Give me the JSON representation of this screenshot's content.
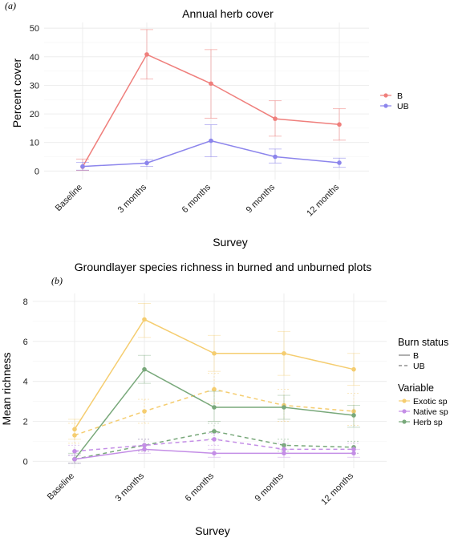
{
  "colors": {
    "burned": "#EF7F7C",
    "unburned": "#8C85EC",
    "exotic": "#F5CD70",
    "native": "#C48EE6",
    "herb": "#78A87A",
    "grid": "#EBEBEB"
  },
  "chart_data": [
    {
      "type": "line",
      "panel_tag": "(a)",
      "title": "Annual herb cover",
      "xlabel": "Survey",
      "ylabel": "Percent cover",
      "categories": [
        "Baseline",
        "3 months",
        "6 months",
        "9 months",
        "12 months"
      ],
      "y_ticks": [
        0,
        10,
        20,
        30,
        40,
        50
      ],
      "ylim": [
        -3,
        52
      ],
      "grid": true,
      "legend_position": "right",
      "series": [
        {
          "name": "B",
          "color_key": "burned",
          "dash": false,
          "values": [
            1.5,
            40.8,
            30.6,
            18.3,
            16.3
          ],
          "err_low": [
            0.2,
            32.2,
            18.5,
            12.2,
            10.8
          ],
          "err_high": [
            4.2,
            49.5,
            42.5,
            24.6,
            21.8
          ]
        },
        {
          "name": "UB",
          "color_key": "unburned",
          "dash": false,
          "values": [
            1.6,
            2.8,
            10.6,
            5.0,
            2.9
          ],
          "err_low": [
            0.3,
            1.6,
            5.0,
            2.8,
            1.3
          ],
          "err_high": [
            3.0,
            4.0,
            16.2,
            7.7,
            4.5
          ]
        }
      ]
    },
    {
      "type": "line",
      "panel_tag": "(b)",
      "title": "Groundlayer species richness in burned and unburned plots",
      "xlabel": "Survey",
      "ylabel": "Mean richness",
      "categories": [
        "Baseline",
        "3 months",
        "6 months",
        "9 months",
        "12 months"
      ],
      "y_ticks": [
        0,
        2,
        4,
        6,
        8
      ],
      "ylim": [
        -0.35,
        8.4
      ],
      "grid": true,
      "legend_position": "right",
      "legend_groups": [
        {
          "title": "Burn status",
          "items": [
            {
              "label": "B",
              "dash": false,
              "color_key": "legend_grey"
            },
            {
              "label": "UB",
              "dash": true,
              "color_key": "legend_grey"
            }
          ]
        },
        {
          "title": "Variable",
          "items": [
            {
              "label": "Exotic sp",
              "color_key": "exotic"
            },
            {
              "label": "Native sp",
              "color_key": "native"
            },
            {
              "label": "Herb sp",
              "color_key": "herb"
            }
          ]
        }
      ],
      "series": [
        {
          "variable": "Exotic sp",
          "burn_status": "B",
          "color_key": "exotic",
          "dash": false,
          "values": [
            1.6,
            7.1,
            5.4,
            5.4,
            4.6
          ],
          "err_low": [
            1.1,
            6.2,
            4.5,
            4.3,
            3.8
          ],
          "err_high": [
            2.1,
            7.9,
            6.3,
            6.5,
            5.4
          ]
        },
        {
          "variable": "Exotic sp",
          "burn_status": "UB",
          "color_key": "exotic",
          "dash": true,
          "values": [
            1.3,
            2.5,
            3.6,
            2.8,
            2.5
          ],
          "err_low": [
            0.9,
            1.9,
            2.9,
            2.0,
            1.8
          ],
          "err_high": [
            1.9,
            3.1,
            4.4,
            3.6,
            3.4
          ]
        },
        {
          "variable": "Herb sp",
          "burn_status": "B",
          "color_key": "herb",
          "dash": false,
          "values": [
            0.1,
            4.6,
            2.7,
            2.7,
            2.3
          ],
          "err_low": [
            -0.1,
            3.9,
            2.0,
            2.1,
            1.7
          ],
          "err_high": [
            0.4,
            5.3,
            3.5,
            3.3,
            2.8
          ]
        },
        {
          "variable": "Herb sp",
          "burn_status": "UB",
          "color_key": "herb",
          "dash": true,
          "values": [
            0.1,
            0.8,
            1.5,
            0.8,
            0.7
          ],
          "err_low": [
            -0.1,
            0.5,
            1.1,
            0.5,
            0.4
          ],
          "err_high": [
            0.3,
            1.1,
            1.9,
            1.1,
            1.0
          ]
        },
        {
          "variable": "Native sp",
          "burn_status": "B",
          "color_key": "native",
          "dash": false,
          "values": [
            0.1,
            0.6,
            0.4,
            0.4,
            0.4
          ],
          "err_low": [
            -0.1,
            0.4,
            0.2,
            0.2,
            0.2
          ],
          "err_high": [
            0.3,
            0.8,
            0.6,
            0.6,
            0.6
          ]
        },
        {
          "variable": "Native sp",
          "burn_status": "UB",
          "color_key": "native",
          "dash": true,
          "values": [
            0.5,
            0.8,
            1.1,
            0.6,
            0.6
          ],
          "err_low": [
            0.3,
            0.5,
            0.8,
            0.4,
            0.4
          ],
          "err_high": [
            0.8,
            1.1,
            1.4,
            0.9,
            0.9
          ]
        }
      ]
    }
  ]
}
